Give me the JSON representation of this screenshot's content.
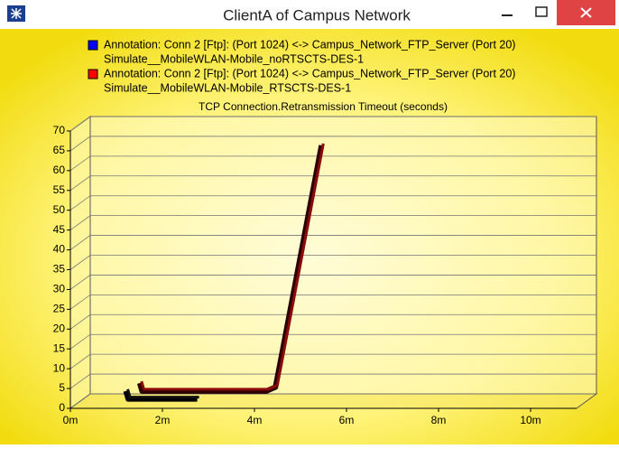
{
  "window": {
    "title": "ClientA of Campus Network"
  },
  "chart_data": {
    "type": "line",
    "title": "TCP Connection.Retransmission Timeout (seconds)",
    "series": [
      {
        "name": [
          "Annotation: Conn 2 [Ftp]: (Port 1024) <-> Campus_Network_FTP_Server (Port 20)",
          "Simulate__MobileWLAN-Mobile_noRTSCTS-DES-1"
        ],
        "color": "#0000ff",
        "x": [
          1.05,
          1.1,
          2.6
        ],
        "values": [
          3,
          1,
          1
        ]
      },
      {
        "name": [
          "Annotation: Conn 2 [Ftp]: (Port 1024) <-> Campus_Network_FTP_Server (Port 20)",
          "Simulate__MobileWLAN-Mobile_RTSCTS-DES-1"
        ],
        "color": "#ff0000",
        "x": [
          1.35,
          1.4,
          4.1,
          4.3,
          4.4,
          5.3
        ],
        "values": [
          5,
          3,
          3,
          4,
          10,
          65
        ]
      }
    ],
    "xlim": [
      0,
      11
    ],
    "xticks": [
      {
        "value": 0,
        "label": "0m"
      },
      {
        "value": 2,
        "label": "2m"
      },
      {
        "value": 4,
        "label": "4m"
      },
      {
        "value": 6,
        "label": "6m"
      },
      {
        "value": 8,
        "label": "8m"
      },
      {
        "value": 10,
        "label": "10m"
      }
    ],
    "ylim": [
      0,
      70
    ],
    "yticks": [
      0,
      5,
      10,
      15,
      20,
      25,
      30,
      35,
      40,
      45,
      50,
      55,
      60,
      65,
      70
    ],
    "grid": true
  }
}
